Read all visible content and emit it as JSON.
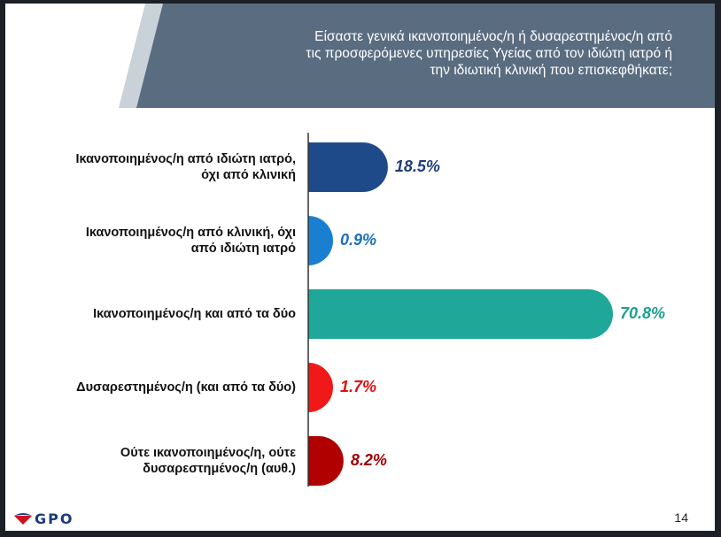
{
  "header": {
    "title": "Είσαστε γενικά ικανοποιημένος/η ή δυσαρεστημένος/η από\nτις προσφερόμενες υπηρεσίες Υγείας από τον ιδιώτη ιατρό ή\nτην ιδιωτική κλινική που επισκεφθήκατε;"
  },
  "chart_data": {
    "type": "bar",
    "orientation": "horizontal",
    "categories": [
      "Ικανοποιημένος/η από ιδιώτη ιατρό,\nόχι από κλινική",
      "Ικανοποιημένος/η από κλινική, όχι\nαπό ιδιώτη ιατρό",
      "Ικανοποιημένος/η και από τα δύο",
      "Δυσαρεστημένος/η (και από τα δύο)",
      "Ούτε ικανοποιημένος/η, ούτε\nδυσαρεστημένος/η (αυθ.)"
    ],
    "values": [
      18.5,
      0.9,
      70.8,
      1.7,
      8.2
    ],
    "value_labels": [
      "18.5%",
      "0.9%",
      "70.8%",
      "1.7%",
      "8.2%"
    ],
    "colors": [
      "#1f4a8a",
      "#1a7fd0",
      "#1fa89a",
      "#f01818",
      "#b00000"
    ],
    "label_colors": [
      "#1f3f7a",
      "#1a6fc0",
      "#1aa090",
      "#e01010",
      "#a00000"
    ],
    "xlim": [
      0,
      70.8
    ]
  },
  "footer": {
    "logo_text": "GPO",
    "page_number": "14"
  },
  "colors": {
    "header_band": "#5a6c80",
    "header_accent": "#c9d1d9"
  }
}
